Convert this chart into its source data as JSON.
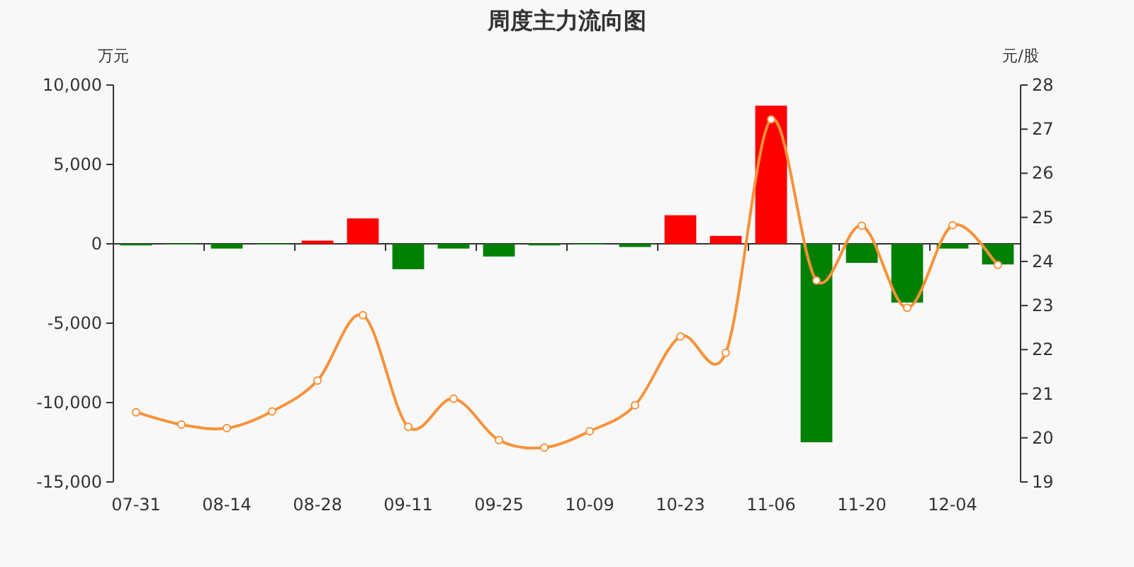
{
  "chart_data": {
    "type": "bar",
    "title": "周度主力流向图",
    "ylabel": "万元",
    "y2label": "元/股",
    "categories": [
      "07-31",
      null,
      "08-14",
      null,
      "08-28",
      null,
      "09-11",
      null,
      "09-25",
      null,
      "10-09",
      null,
      "10-23",
      null,
      "11-06",
      null,
      "11-20",
      null,
      "12-04",
      null
    ],
    "series": [
      {
        "colors": [
          "#008000",
          "#008000",
          "#008000",
          "#008000",
          "#ff0000",
          "#ff0000",
          "#008000",
          "#008000",
          "#008000",
          "#008000",
          "#008000",
          "#008000",
          "#ff0000",
          "#ff0000",
          "#ff0000",
          "#008000",
          "#008000",
          "#008000",
          "#008000",
          "#008000"
        ],
        "values": [
          -100,
          0,
          -300,
          0,
          200,
          1600,
          -1600,
          -300,
          -800,
          -100,
          0,
          -200,
          1800,
          500,
          8700,
          -12500,
          -1200,
          -3700,
          -300,
          -1300
        ]
      },
      {
        "type": "line",
        "axis": "y2",
        "color": "#f7923a",
        "marker": "circle",
        "values": [
          20.58,
          20.3,
          20.22,
          20.6,
          21.3,
          22.78,
          20.25,
          20.89,
          19.95,
          19.78,
          20.15,
          20.74,
          22.3,
          21.93,
          27.22,
          23.57,
          24.81,
          22.95,
          24.82,
          23.92
        ]
      }
    ],
    "ylim": [
      -15000,
      10000
    ],
    "yticks": [
      {
        "value": -15000,
        "label": "-15,000"
      },
      {
        "value": -10000,
        "label": "-10,000"
      },
      {
        "value": -5000,
        "label": "-5,000"
      },
      0,
      {
        "value": 5000,
        "label": "5,000"
      },
      {
        "value": 10000,
        "label": "10,000"
      }
    ],
    "y2lim": [
      19,
      28
    ],
    "y2ticks": [
      19,
      20,
      21,
      22,
      23,
      24,
      25,
      26,
      27,
      28
    ]
  }
}
